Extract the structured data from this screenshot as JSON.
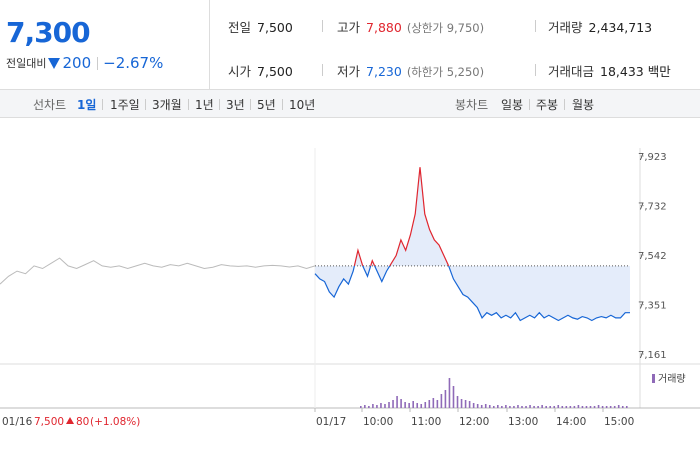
{
  "quote": {
    "price": "7,300",
    "change_label": "전일대비",
    "change_value": "200",
    "change_pct": "−2.67%",
    "down_color": "#1766d6",
    "up_color": "#e0262f"
  },
  "stats": {
    "prev_close": {
      "label": "전일",
      "value": "7,500"
    },
    "high": {
      "label": "고가",
      "value": "7,880",
      "sub": "(상한가 9,750)"
    },
    "volume": {
      "label": "거래량",
      "value": "2,434,713"
    },
    "open": {
      "label": "시가",
      "value": "7,500"
    },
    "low": {
      "label": "저가",
      "value": "7,230",
      "sub": "(하한가 5,250)"
    },
    "amount": {
      "label": "거래대금",
      "value": "18,433 백만"
    }
  },
  "toolbar": {
    "line_label": "선차트",
    "line_periods": [
      "1일",
      "1주일",
      "3개월",
      "1년",
      "3년",
      "5년",
      "10년"
    ],
    "active_period": "1일",
    "candle_label": "봉차트",
    "candle_periods": [
      "일봉",
      "주봉",
      "월봉"
    ]
  },
  "chart_data": {
    "type": "line",
    "y_ticks": [
      "7,923",
      "7,732",
      "7,542",
      "7,351",
      "7,161"
    ],
    "ylim": [
      7161,
      7923
    ],
    "reference_price": 7500,
    "x_labels": [
      "01/17",
      "10:00",
      "11:00",
      "12:00",
      "13:00",
      "14:00",
      "15:00"
    ],
    "prev_day": {
      "date_label": "01/16",
      "close_label": "7,500",
      "change_label": "80",
      "change_pct_label": "(+1.08%)",
      "values": [
        7430,
        7460,
        7480,
        7470,
        7500,
        7490,
        7510,
        7530,
        7500,
        7490,
        7505,
        7520,
        7500,
        7495,
        7500,
        7490,
        7500,
        7510,
        7500,
        7495,
        7505,
        7500,
        7510,
        7500,
        7490,
        7495,
        7505,
        7500,
        7498,
        7500,
        7495,
        7500,
        7502,
        7500,
        7496,
        7500,
        7490,
        7500
      ]
    },
    "today": {
      "values": [
        7470,
        7450,
        7440,
        7400,
        7380,
        7420,
        7450,
        7430,
        7480,
        7560,
        7500,
        7460,
        7520,
        7480,
        7440,
        7480,
        7510,
        7540,
        7600,
        7560,
        7620,
        7700,
        7880,
        7700,
        7640,
        7600,
        7580,
        7540,
        7500,
        7450,
        7420,
        7390,
        7380,
        7360,
        7340,
        7300,
        7320,
        7310,
        7320,
        7300,
        7310,
        7300,
        7320,
        7290,
        7300,
        7310,
        7300,
        7320,
        7300,
        7310,
        7300,
        7290,
        7300,
        7310,
        7300,
        7295,
        7305,
        7300,
        7290,
        7300,
        7305,
        7300,
        7310,
        7300,
        7300,
        7320,
        7320
      ],
      "volume": [
        2,
        3,
        2,
        4,
        3,
        5,
        4,
        6,
        8,
        12,
        9,
        6,
        5,
        7,
        5,
        4,
        6,
        8,
        10,
        8,
        14,
        18,
        30,
        22,
        12,
        9,
        8,
        7,
        5,
        4,
        3,
        4,
        3,
        2,
        3,
        2,
        3,
        2,
        2,
        3,
        2,
        2,
        3,
        2,
        2,
        3,
        2,
        2,
        2,
        3,
        2,
        2,
        2,
        2,
        3,
        2,
        2,
        2,
        2,
        3,
        2,
        2,
        2,
        2,
        3,
        2,
        2
      ]
    },
    "legend": "거래량",
    "up_color": "#e0262f",
    "down_color": "#1766d6",
    "prev_color": "#bbbbbb",
    "fill_color": "#e4ecfa",
    "volume_color": "#8f6ab8"
  }
}
